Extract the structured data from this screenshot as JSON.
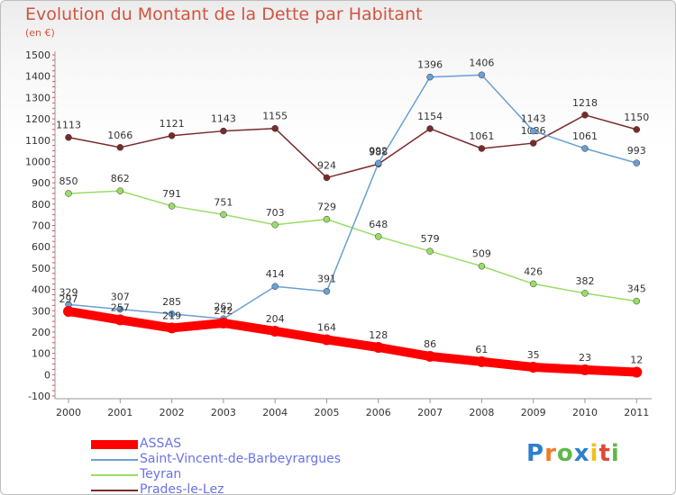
{
  "chart_data": {
    "type": "line",
    "title": "Evolution du Montant de la Dette par Habitant",
    "subtitle": "(en €)",
    "x": [
      "2000",
      "2001",
      "2002",
      "2003",
      "2004",
      "2005",
      "2006",
      "2007",
      "2008",
      "2009",
      "2010",
      "2011"
    ],
    "ylim": [
      -100,
      1500
    ],
    "yticks": [
      -100,
      0,
      100,
      200,
      300,
      400,
      500,
      600,
      700,
      800,
      900,
      1000,
      1100,
      1200,
      1300,
      1400,
      1500
    ],
    "grid": false,
    "legend_position": "bottom-left",
    "series": [
      {
        "name": "ASSAS",
        "color": "#ff0000",
        "values": [
          297,
          257,
          219,
          242,
          204,
          164,
          128,
          86,
          61,
          35,
          23,
          12
        ]
      },
      {
        "name": "Saint-Vincent-de-Barbeyrargues",
        "color": "#6a9fd4",
        "values": [
          329,
          307,
          285,
          262,
          414,
          391,
          992,
          1396,
          1406,
          1143,
          1061,
          993
        ]
      },
      {
        "name": "Teyran",
        "color": "#99dd66",
        "values": [
          850,
          862,
          791,
          751,
          703,
          729,
          648,
          579,
          509,
          426,
          382,
          345
        ]
      },
      {
        "name": "Prades-le-Lez",
        "color": "#7a2a2a",
        "values": [
          1113,
          1066,
          1121,
          1143,
          1155,
          924,
          988,
          1154,
          1061,
          1086,
          1218,
          1150
        ]
      }
    ]
  },
  "logo": {
    "letters": [
      "P",
      "r",
      "o",
      "x",
      "i",
      "t",
      "i"
    ],
    "colors": [
      "#2f7fd0",
      "#f07b2a",
      "#5fb84a",
      "#2f7fd0",
      "#f0c020",
      "#e0483a",
      "#5fb84a"
    ]
  }
}
